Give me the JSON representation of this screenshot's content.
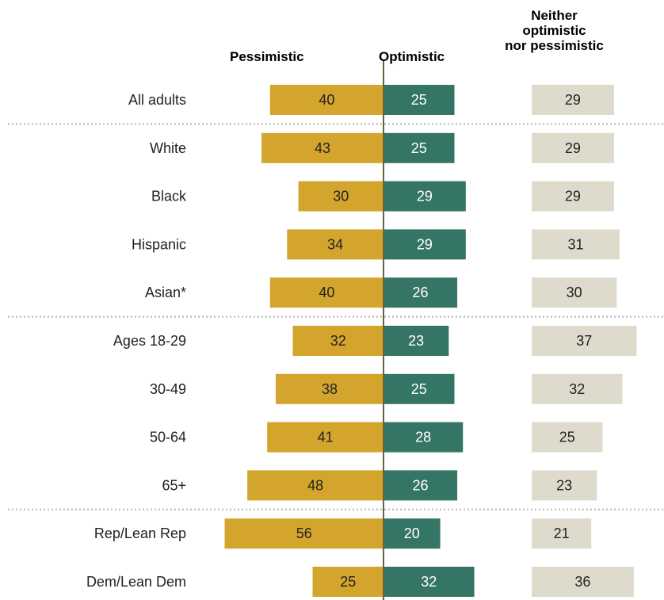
{
  "chart_data": {
    "type": "bar",
    "headers": {
      "pessimistic": "Pessimistic",
      "optimistic": "Optimistic",
      "neither_lines": [
        "Neither",
        "optimistic",
        "nor pessimistic"
      ]
    },
    "categories": [
      "All adults",
      "White",
      "Black",
      "Hispanic",
      "Asian*",
      "Ages 18-29",
      "30-49",
      "50-64",
      "65+",
      "Rep/Lean Rep",
      "Dem/Lean Dem"
    ],
    "series": [
      {
        "name": "Pessimistic",
        "values": [
          40,
          43,
          30,
          34,
          40,
          32,
          38,
          41,
          48,
          56,
          25
        ]
      },
      {
        "name": "Optimistic",
        "values": [
          25,
          25,
          29,
          29,
          26,
          23,
          25,
          28,
          26,
          20,
          32
        ]
      },
      {
        "name": "Neither optimistic nor pessimistic",
        "values": [
          29,
          29,
          29,
          31,
          30,
          37,
          32,
          25,
          23,
          21,
          36
        ]
      }
    ],
    "group_separators_after": [
      0,
      4,
      8
    ],
    "colors": {
      "pessimistic": "#d3a52d",
      "optimistic": "#357565",
      "neither": "#dedbcd",
      "baseline": "#6b6535",
      "separator": "#b5b5b5",
      "label_dark": "#222222",
      "label_light": "#ffffff"
    }
  }
}
